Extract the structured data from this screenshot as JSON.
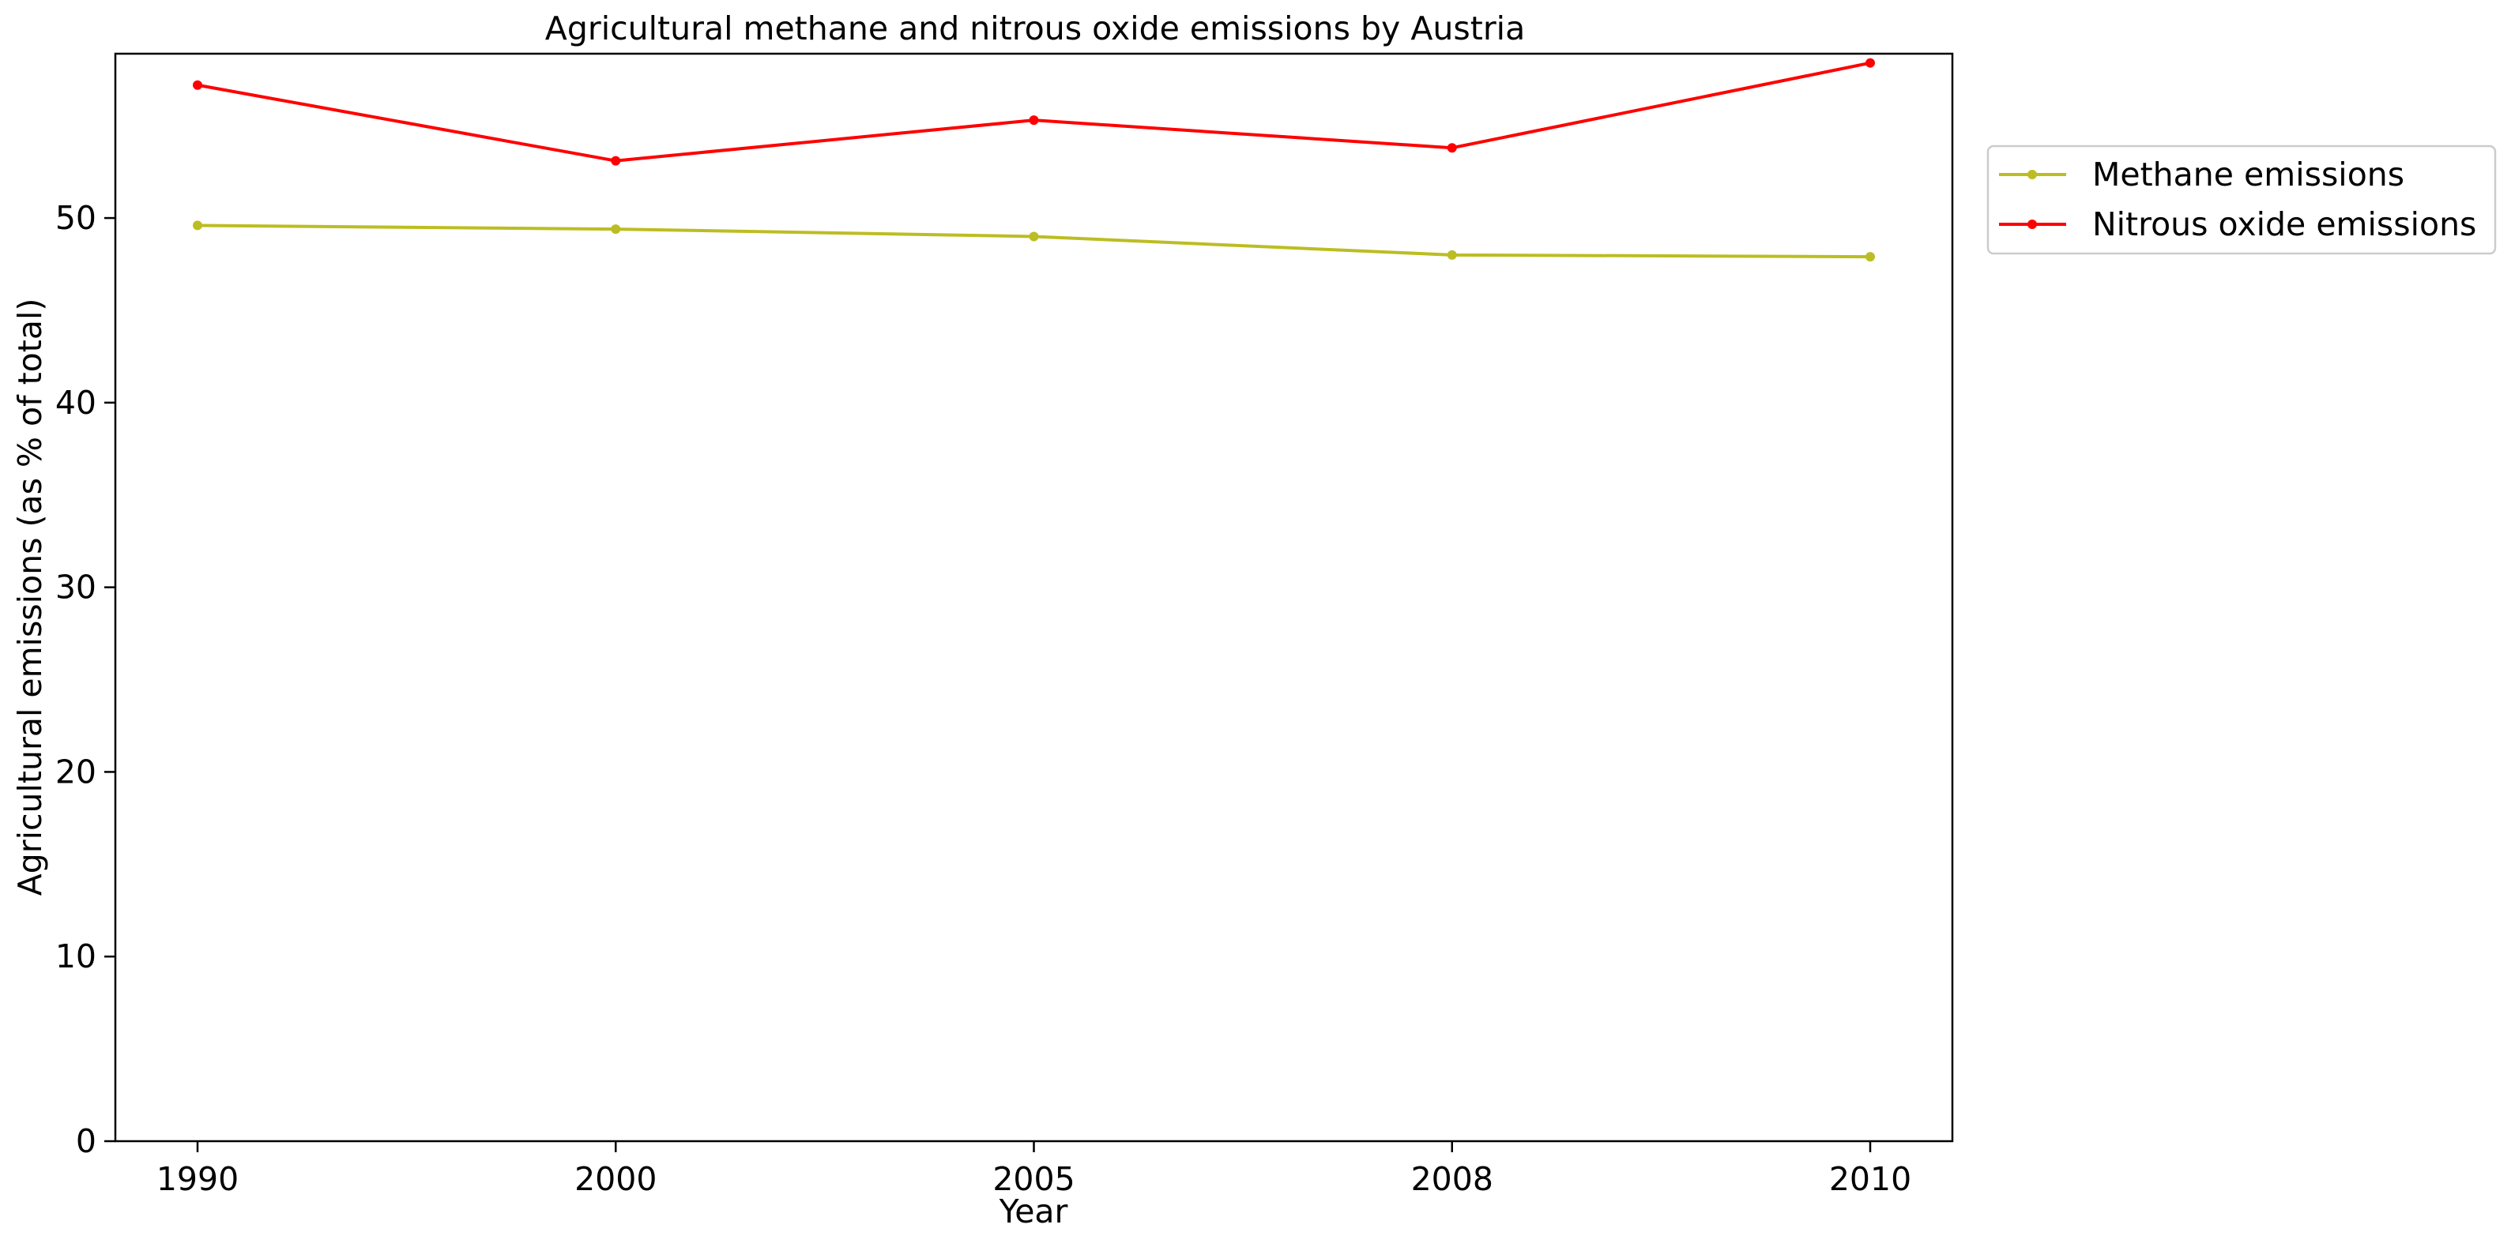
{
  "chart_data": {
    "type": "line",
    "title": "Agricultural methane and nitrous oxide emissions by Austria",
    "xlabel": "Year",
    "ylabel": "Agricultural emissions (as % of total)",
    "categories": [
      "1990",
      "2000",
      "2005",
      "2008",
      "2010"
    ],
    "ylim": [
      0,
      58.9
    ],
    "yticks": [
      0,
      10,
      20,
      30,
      40,
      50
    ],
    "grid": false,
    "legend_position": "outside-top-right",
    "series": [
      {
        "name": "Methane emissions",
        "color": "#bcbd22",
        "values": [
          49.6,
          49.4,
          49.0,
          48.0,
          47.9
        ]
      },
      {
        "name": "Nitrous oxide emissions",
        "color": "#ff0000",
        "values": [
          57.2,
          53.1,
          55.3,
          53.8,
          58.4
        ]
      }
    ]
  }
}
